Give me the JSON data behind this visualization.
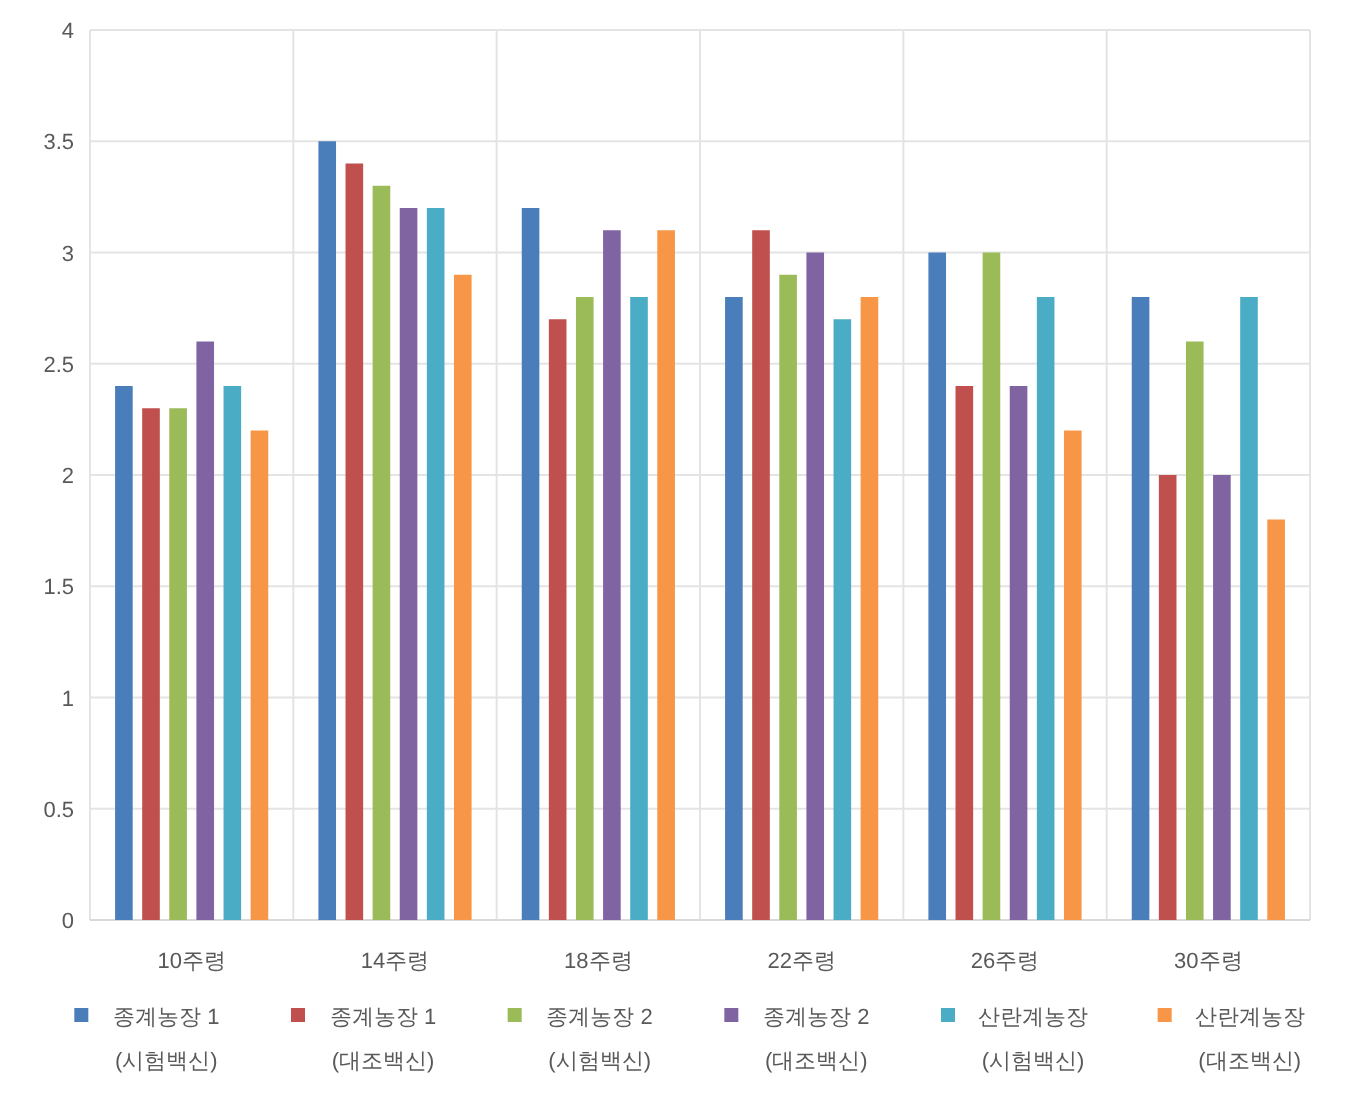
{
  "chart_data": {
    "type": "bar",
    "categories": [
      "10주령",
      "14주령",
      "18주령",
      "22주령",
      "26주령",
      "30주령"
    ],
    "series": [
      {
        "name": "종계농장 1\n(시험백신)",
        "color": "#4a7ebb",
        "values": [
          2.4,
          3.5,
          3.2,
          2.8,
          3.0,
          2.8
        ]
      },
      {
        "name": "종계농장 1\n(대조백신)",
        "color": "#c0504d",
        "values": [
          2.3,
          3.4,
          2.7,
          3.1,
          2.4,
          2.0
        ]
      },
      {
        "name": "종계농장 2\n(시험백신)",
        "color": "#9bbb59",
        "values": [
          2.3,
          3.3,
          2.8,
          2.9,
          3.0,
          2.6
        ]
      },
      {
        "name": "종계농장 2\n(대조백신)",
        "color": "#8064a2",
        "values": [
          2.6,
          3.2,
          3.1,
          3.0,
          2.4,
          2.0
        ]
      },
      {
        "name": "산란계농장\n(시험백신)",
        "color": "#4bacc6",
        "values": [
          2.4,
          3.2,
          2.8,
          2.7,
          2.8,
          2.8
        ]
      },
      {
        "name": "산란계농장\n(대조백신)",
        "color": "#f79646",
        "values": [
          2.2,
          2.9,
          3.1,
          2.8,
          2.2,
          1.8
        ]
      }
    ],
    "ylim": [
      0,
      4
    ],
    "yticks": [
      0,
      0.5,
      1,
      1.5,
      2,
      2.5,
      3,
      3.5,
      4
    ],
    "grid": true,
    "legend": "bottom"
  }
}
